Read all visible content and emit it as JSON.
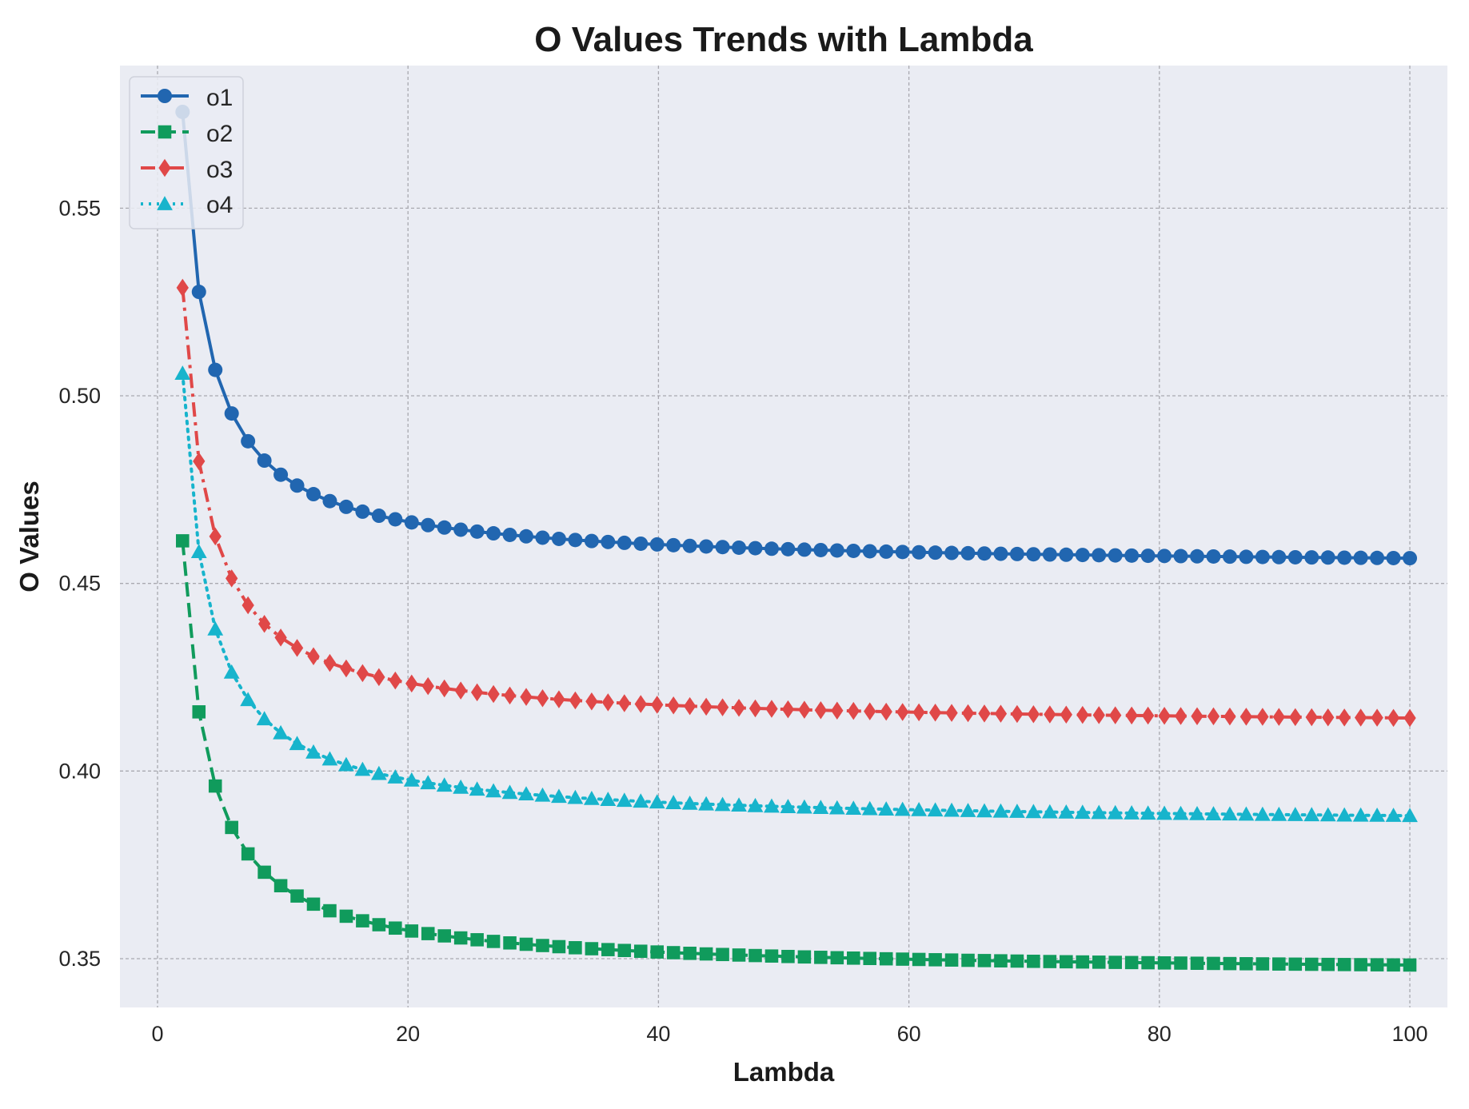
{
  "chart_data": {
    "type": "line",
    "title": "O Values Trends with Lambda",
    "xlabel": "Lambda",
    "ylabel": "O Values",
    "xlim": [
      -3,
      103
    ],
    "ylim": [
      0.337,
      0.588
    ],
    "xticks": [
      0,
      20,
      40,
      60,
      80,
      100
    ],
    "xtick_labels": [
      "0",
      "20",
      "40",
      "60",
      "80",
      "100"
    ],
    "yticks": [
      0.35,
      0.4,
      0.45,
      0.5,
      0.55
    ],
    "ytick_labels": [
      "0.35",
      "0.40",
      "0.45",
      "0.50",
      "0.55"
    ],
    "grid": true,
    "legend": "top-left",
    "x_start": 2,
    "x_end": 100,
    "num_points": 76,
    "series": [
      {
        "name": "o1",
        "color": "#2166b0",
        "marker": "circle",
        "line_style": "solid",
        "model": {
          "asymptote": 0.4543,
          "scale": 0.2427,
          "power": 1.0
        }
      },
      {
        "name": "o2",
        "color": "#109b5c",
        "marker": "square",
        "line_style": "dashed",
        "model": {
          "asymptote": 0.346,
          "scale": 0.2307,
          "power": 1.0
        }
      },
      {
        "name": "o3",
        "color": "#e04848",
        "marker": "diamond",
        "line_style": "dashdot",
        "model": {
          "asymptote": 0.4118,
          "scale": 0.234,
          "power": 1.0
        }
      },
      {
        "name": "o4",
        "color": "#17b4cc",
        "marker": "triangle",
        "line_style": "dotted",
        "model": {
          "asymptote": 0.3857,
          "scale": 0.2405,
          "power": 1.0
        }
      }
    ]
  }
}
